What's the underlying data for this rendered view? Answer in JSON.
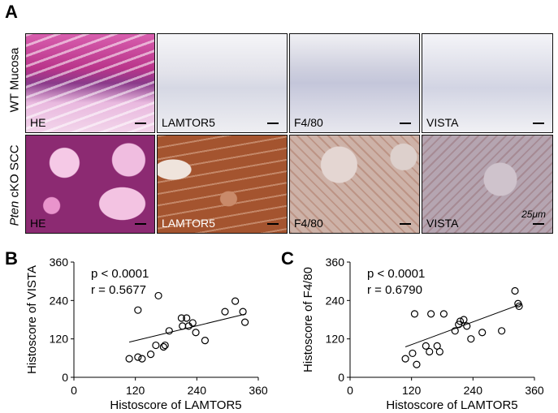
{
  "panel_a": {
    "letter": "A",
    "row_labels": [
      "WT Mucosa",
      "cKO SCC"
    ],
    "row2_italic_prefix": "Pten",
    "columns": [
      "HE",
      "LAMTOR5",
      "F4/80",
      "VISTA"
    ],
    "scale_text": "25μm",
    "tile_colors": {
      "he_wt": "#c44a9a",
      "ihc_wt": "#e8e6ee",
      "he_scc": "#b8347f",
      "lamtor5_scc": "#a65a3a",
      "f480_scc": "#c9a898",
      "vista_scc": "#b7a7b3"
    }
  },
  "chart_data": [
    {
      "type": "scatter",
      "panel_letter": "B",
      "title": "",
      "xlabel": "Histoscore of LAMTOR5",
      "ylabel": "Histoscore of VISTA",
      "xlim": [
        0,
        360
      ],
      "ylim": [
        0,
        360
      ],
      "xticks": [
        0,
        120,
        240,
        360
      ],
      "yticks": [
        0,
        120,
        240,
        360
      ],
      "annotations": [
        "p < 0.0001",
        "r = 0.5677"
      ],
      "points": [
        [
          108,
          58
        ],
        [
          125,
          63
        ],
        [
          133,
          58
        ],
        [
          125,
          210
        ],
        [
          150,
          72
        ],
        [
          160,
          100
        ],
        [
          165,
          255
        ],
        [
          175,
          95
        ],
        [
          178,
          100
        ],
        [
          186,
          145
        ],
        [
          210,
          185
        ],
        [
          212,
          160
        ],
        [
          220,
          185
        ],
        [
          224,
          160
        ],
        [
          232,
          170
        ],
        [
          238,
          140
        ],
        [
          256,
          115
        ],
        [
          295,
          205
        ],
        [
          315,
          238
        ],
        [
          330,
          205
        ],
        [
          334,
          172
        ]
      ],
      "fit_line": [
        [
          108,
          110
        ],
        [
          336,
          198
        ]
      ]
    },
    {
      "type": "scatter",
      "panel_letter": "C",
      "title": "",
      "xlabel": "Histoscore of LAMTOR5",
      "ylabel": "Histoscore of F4/80",
      "xlim": [
        0,
        360
      ],
      "ylim": [
        0,
        360
      ],
      "xticks": [
        0,
        120,
        240,
        360
      ],
      "yticks": [
        0,
        120,
        240,
        360
      ],
      "annotations": [
        "p < 0.0001",
        "r = 0.6790"
      ],
      "points": [
        [
          108,
          58
        ],
        [
          122,
          75
        ],
        [
          126,
          198
        ],
        [
          130,
          40
        ],
        [
          148,
          98
        ],
        [
          155,
          80
        ],
        [
          158,
          198
        ],
        [
          170,
          98
        ],
        [
          175,
          80
        ],
        [
          183,
          198
        ],
        [
          205,
          145
        ],
        [
          212,
          165
        ],
        [
          215,
          175
        ],
        [
          222,
          180
        ],
        [
          228,
          160
        ],
        [
          236,
          120
        ],
        [
          258,
          140
        ],
        [
          296,
          145
        ],
        [
          322,
          270
        ],
        [
          328,
          230
        ],
        [
          330,
          222
        ]
      ],
      "fit_line": [
        [
          108,
          95
        ],
        [
          336,
          230
        ]
      ]
    }
  ]
}
